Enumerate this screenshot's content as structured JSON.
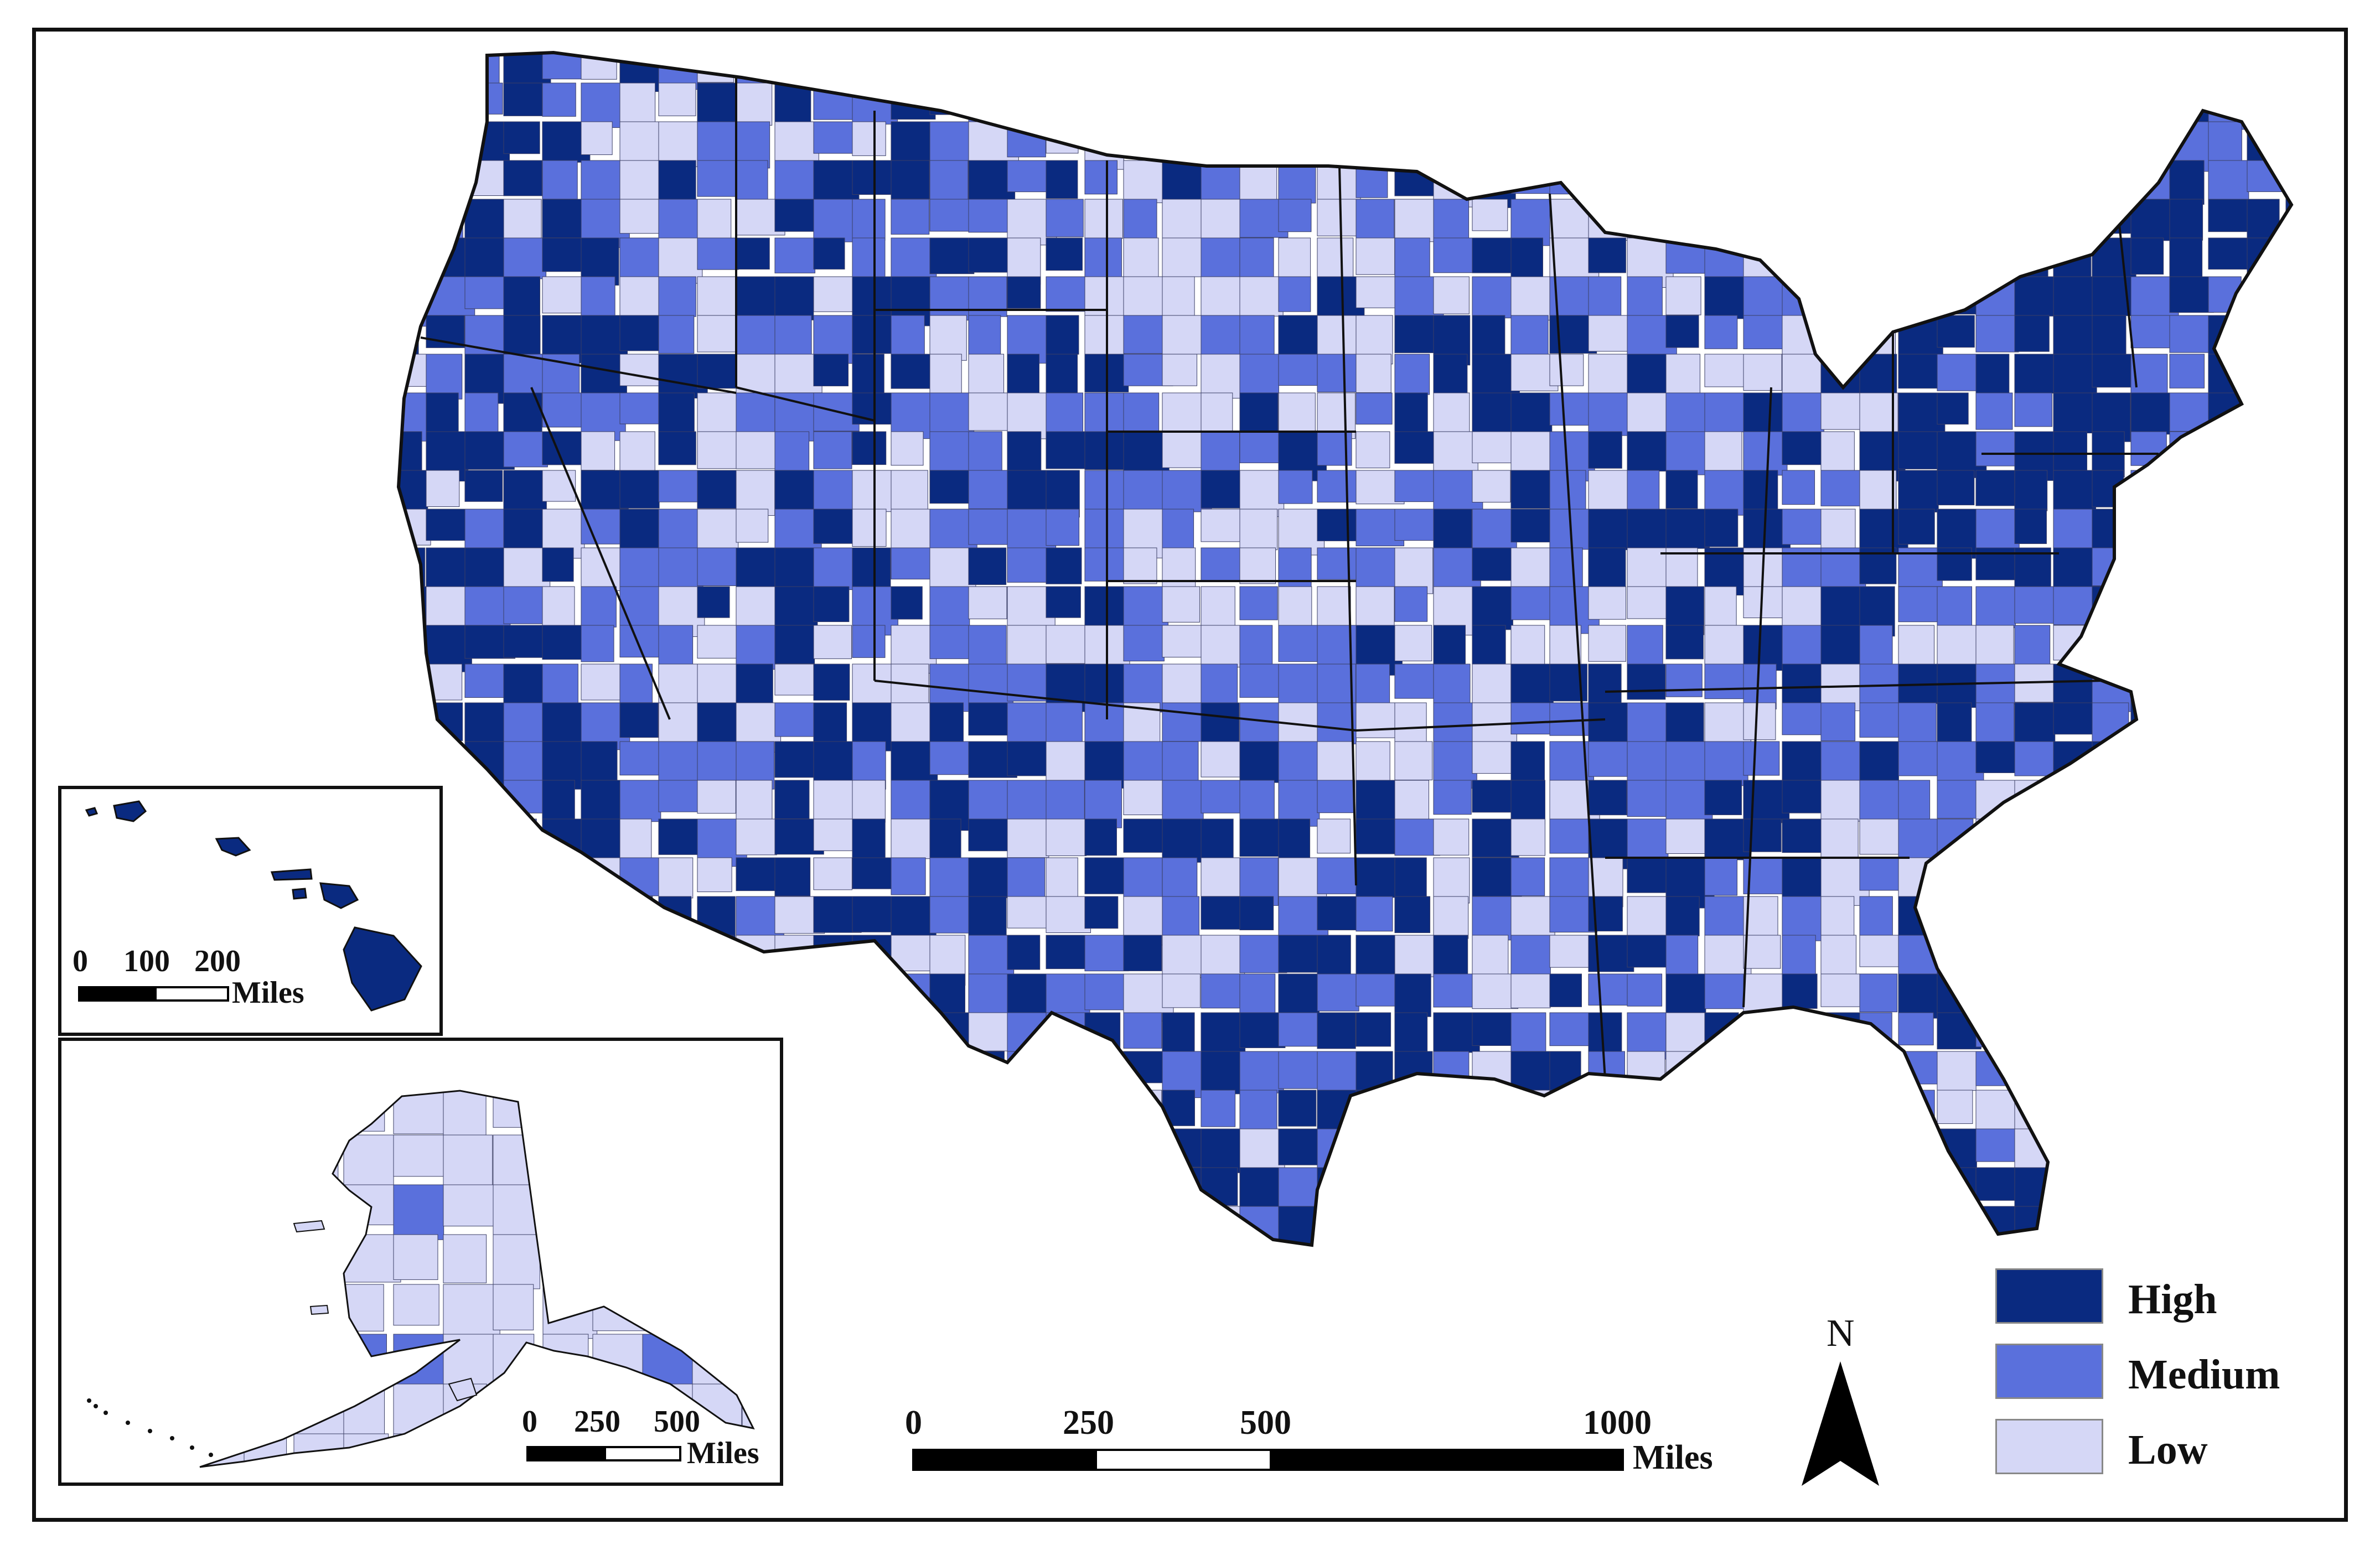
{
  "legend": {
    "items": [
      {
        "label": "High",
        "color": "#0a2a80"
      },
      {
        "label": "Medium",
        "color": "#5a70dc"
      },
      {
        "label": "Low",
        "color": "#d5d7f6"
      }
    ]
  },
  "colors": {
    "high": "#0a2a80",
    "medium": "#5a70dc",
    "low": "#d5d7f6",
    "state_border": "#111111",
    "county_border": "#3b3f66"
  },
  "north_arrow": {
    "label": "N"
  },
  "main_scale": {
    "ticks": [
      "0",
      "250",
      "500",
      "1000"
    ],
    "unit": "Miles"
  },
  "hawaii_scale": {
    "ticks": [
      "0",
      "100",
      "200"
    ],
    "unit": "Miles"
  },
  "alaska_scale": {
    "ticks": [
      "0",
      "250",
      "500"
    ],
    "unit": "Miles"
  }
}
